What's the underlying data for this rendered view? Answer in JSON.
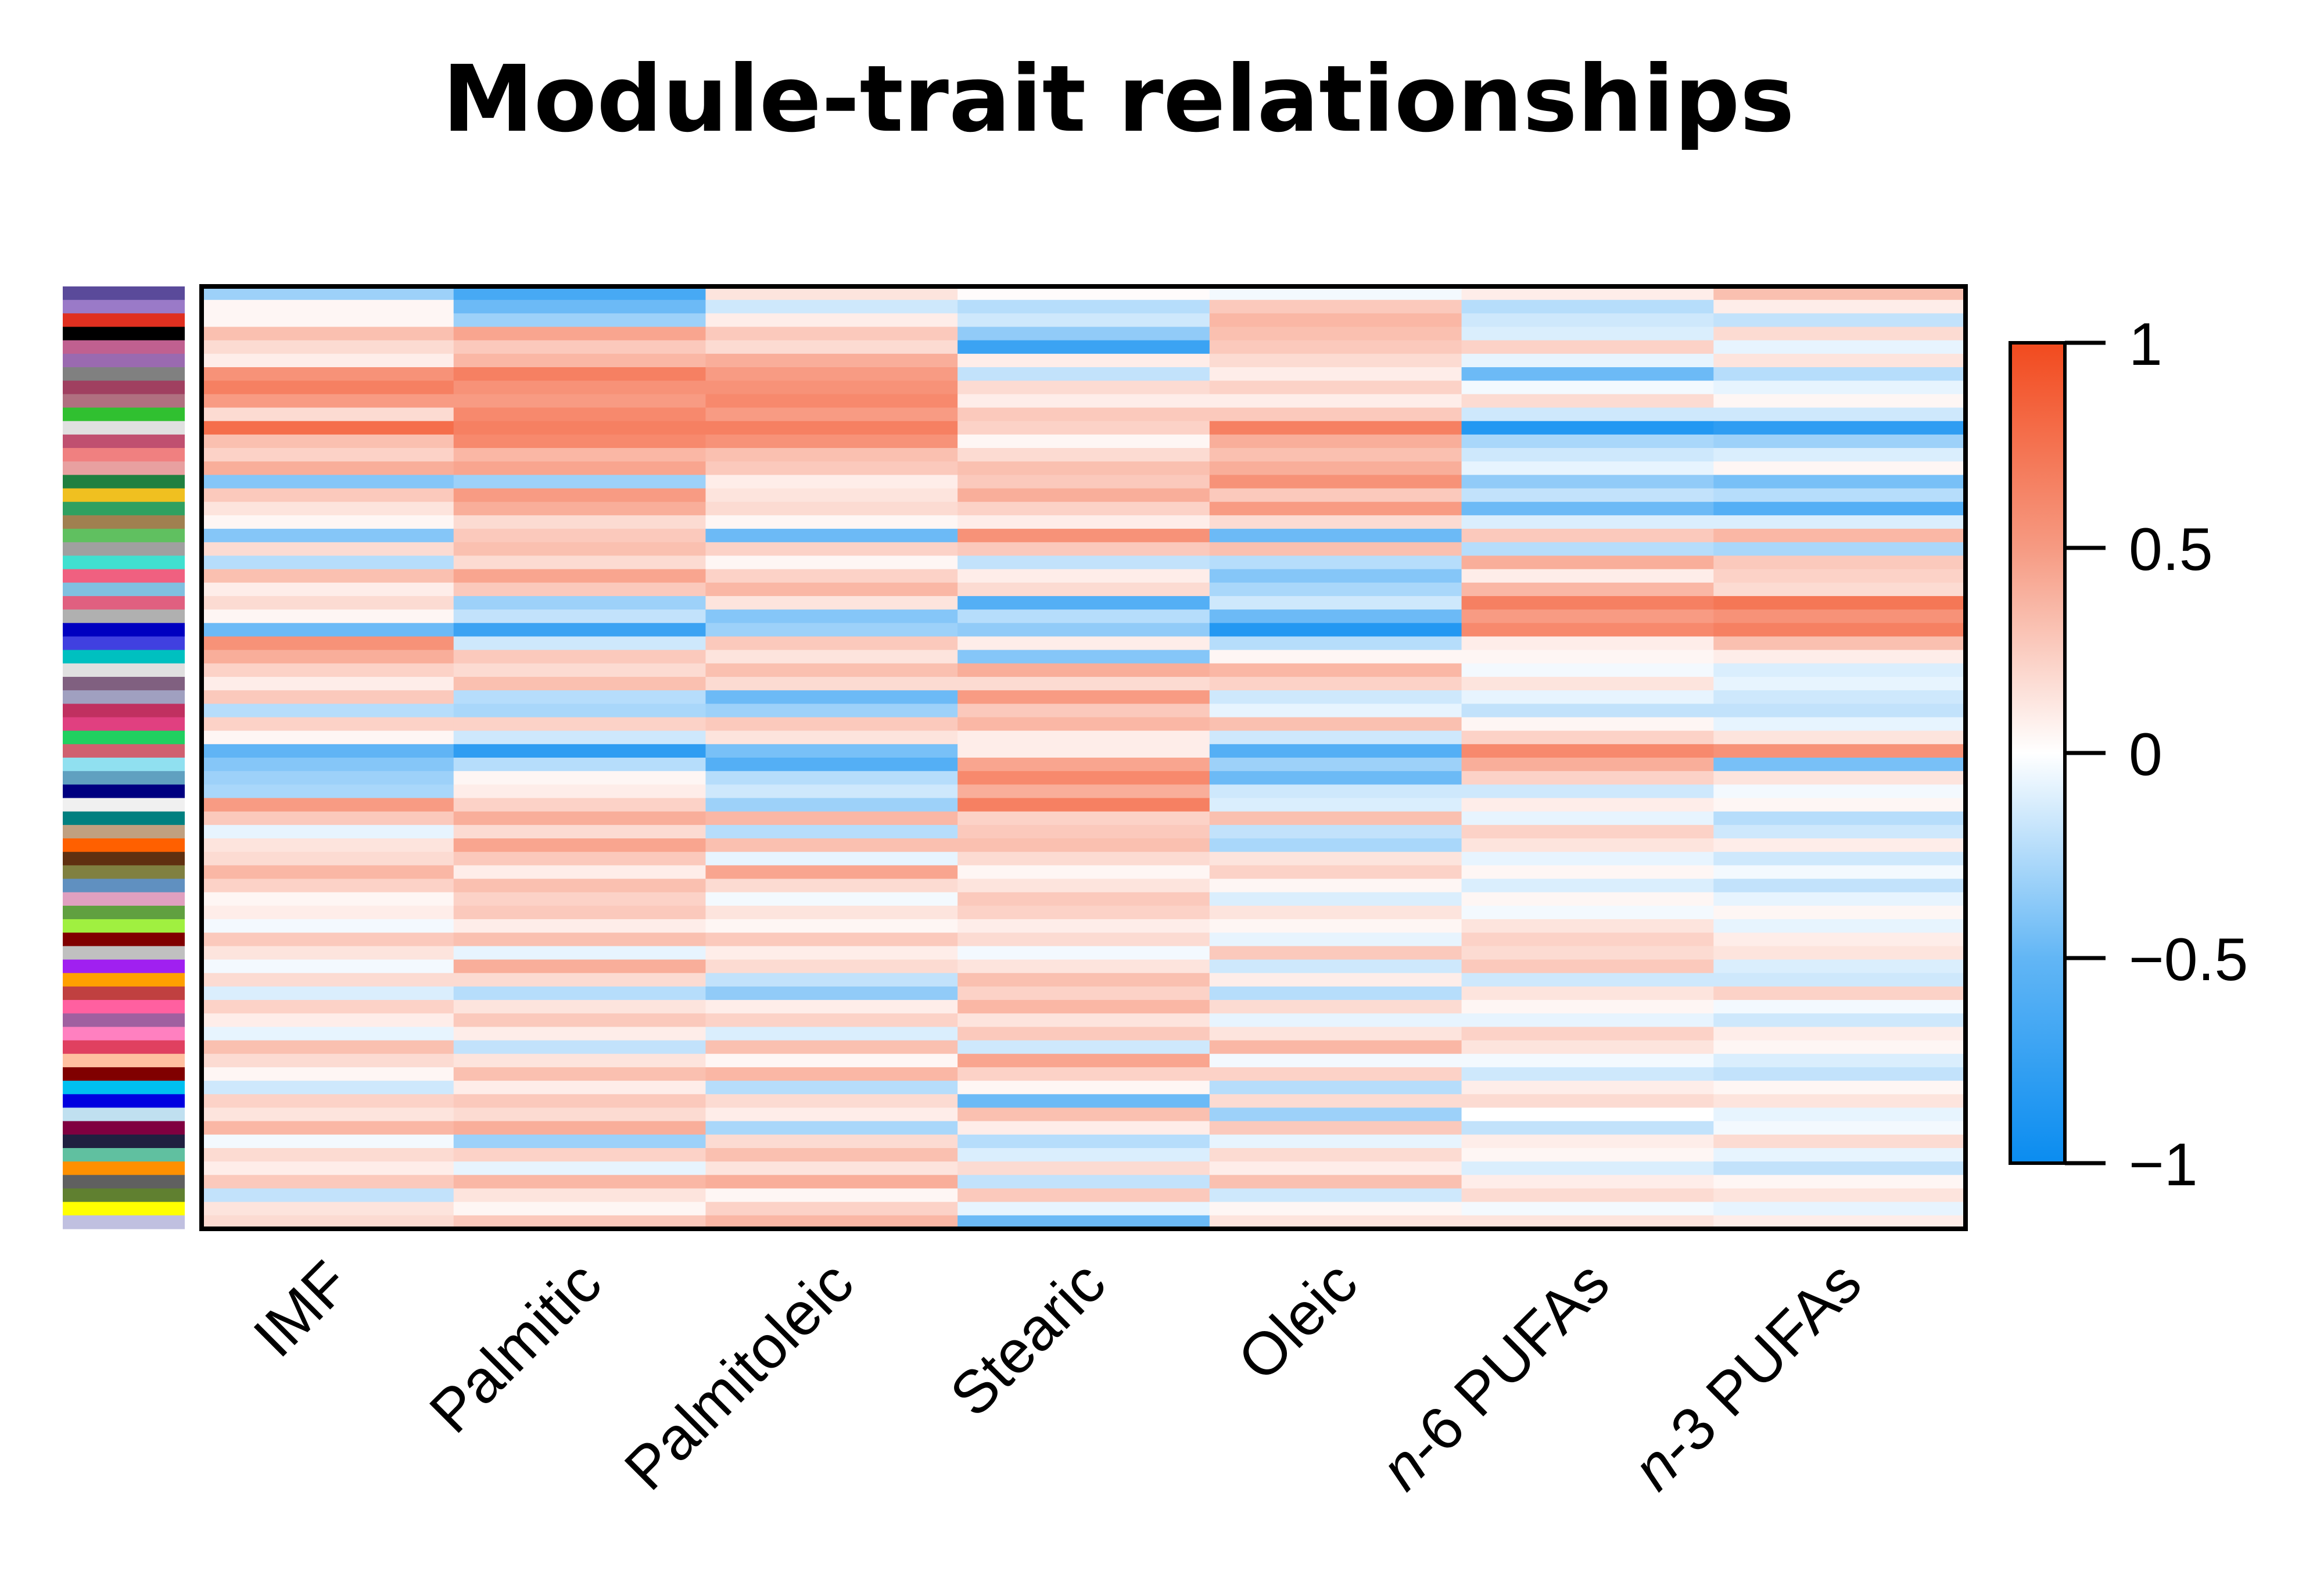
{
  "chart_data": {
    "type": "heatmap",
    "title": "Module-trait relationships",
    "traits": [
      "IMF",
      "Palmitic",
      "Palmitoleic",
      "Stearic",
      "Oleic",
      "n-6 PUFAs",
      "n-3 PUFAs"
    ],
    "trait_labels": [
      {
        "prefix": "",
        "italic": "",
        "rest": "IMF"
      },
      {
        "prefix": "",
        "italic": "",
        "rest": "Palmitic"
      },
      {
        "prefix": "",
        "italic": "",
        "rest": "Palmitoleic"
      },
      {
        "prefix": "",
        "italic": "",
        "rest": "Stearic"
      },
      {
        "prefix": "",
        "italic": "",
        "rest": "Oleic"
      },
      {
        "prefix": "",
        "italic": "n",
        "rest": "-6 PUFAs"
      },
      {
        "prefix": "",
        "italic": "n",
        "rest": "-3 PUFAs"
      }
    ],
    "module_count": 70,
    "value_range": [
      -1,
      1
    ],
    "colorbar": {
      "ticks": [
        1,
        0.5,
        0,
        -0.5,
        -1
      ],
      "tick_labels": [
        "1",
        "0.5",
        "0",
        "−0.5",
        "−1"
      ],
      "colors": {
        "low": "#0a8cf0",
        "mid": "#ffffff",
        "high": "#f24a1e"
      }
    },
    "module_colors": [
      "#5a4a9a",
      "#9a7ac8",
      "#e03020",
      "#000000",
      "#c06090",
      "#9a6ab0",
      "#808080",
      "#a04060",
      "#b07080",
      "#30c030",
      "#e0e0e0",
      "#c05070",
      "#f08080",
      "#e8a0a0",
      "#208040",
      "#f0c020",
      "#30a060",
      "#a08050",
      "#60c060",
      "#a0a0a0",
      "#40e0d0",
      "#f06080",
      "#80c0e0",
      "#e06080",
      "#b0b0b0",
      "#0000c0",
      "#4040e0",
      "#00c0c0",
      "#e0e0e0",
      "#806080",
      "#a0a0c0",
      "#c03060",
      "#e04080",
      "#20d060",
      "#d06070",
      "#90e0f0",
      "#60a0c0",
      "#000080",
      "#f0f0f0",
      "#008080",
      "#c0a080",
      "#ff6000",
      "#603010",
      "#808040",
      "#6090c0",
      "#e0a0c0",
      "#60a040",
      "#a0f040",
      "#800000",
      "#c0c0c0",
      "#a020f0",
      "#ffa000",
      "#c04040",
      "#ff60a0",
      "#a060a0",
      "#ff80c0",
      "#e04060",
      "#ffc0a0",
      "#800000",
      "#00c0f0",
      "#0000e0",
      "#c0e0f0",
      "#800040",
      "#202040",
      "#60c0a0",
      "#ff9000",
      "#606060",
      "#608030",
      "#ffff00",
      "#c0c0e0"
    ],
    "values": [
      [
        -0.4,
        -0.75,
        0.15,
        0.02,
        -0.05,
        0.1,
        0.35
      ],
      [
        0.05,
        -0.6,
        -0.2,
        -0.3,
        0.3,
        -0.3,
        0.1
      ],
      [
        0.05,
        -0.4,
        0.1,
        -0.2,
        0.4,
        -0.2,
        -0.25
      ],
      [
        0.35,
        0.5,
        0.3,
        -0.45,
        0.35,
        -0.15,
        0.2
      ],
      [
        0.2,
        0.3,
        0.2,
        -0.8,
        0.3,
        0.25,
        -0.1
      ],
      [
        0.1,
        0.4,
        0.45,
        0.1,
        0.2,
        -0.1,
        0.15
      ],
      [
        0.6,
        0.7,
        0.55,
        -0.25,
        0.1,
        -0.6,
        -0.3
      ],
      [
        0.7,
        0.6,
        0.6,
        0.2,
        0.25,
        -0.05,
        -0.1
      ],
      [
        0.55,
        0.55,
        0.65,
        0.1,
        0.1,
        0.2,
        0.05
      ],
      [
        0.2,
        0.65,
        0.55,
        0.3,
        0.3,
        -0.2,
        -0.2
      ],
      [
        0.8,
        0.7,
        0.7,
        0.25,
        0.7,
        -0.9,
        -0.85
      ],
      [
        0.35,
        0.65,
        0.6,
        0.05,
        0.45,
        -0.35,
        -0.4
      ],
      [
        0.25,
        0.4,
        0.35,
        0.2,
        0.35,
        -0.2,
        -0.15
      ],
      [
        0.45,
        0.5,
        0.3,
        0.35,
        0.45,
        -0.1,
        0.05
      ],
      [
        -0.5,
        -0.4,
        0.1,
        0.3,
        0.6,
        -0.45,
        -0.55
      ],
      [
        0.3,
        0.55,
        0.15,
        0.45,
        0.3,
        -0.25,
        -0.3
      ],
      [
        0.15,
        0.45,
        0.2,
        0.25,
        0.55,
        -0.6,
        -0.7
      ],
      [
        0.05,
        0.2,
        0.05,
        0.1,
        0.2,
        -0.15,
        -0.15
      ],
      [
        -0.5,
        0.3,
        -0.6,
        0.6,
        -0.6,
        0.3,
        0.4
      ],
      [
        0.2,
        0.35,
        0.25,
        0.3,
        0.35,
        -0.3,
        -0.35
      ],
      [
        -0.3,
        0.2,
        0.05,
        -0.25,
        -0.3,
        0.45,
        0.3
      ],
      [
        0.35,
        0.5,
        0.25,
        0.1,
        -0.5,
        0.1,
        0.25
      ],
      [
        0.1,
        0.3,
        0.4,
        0.2,
        -0.35,
        0.4,
        0.2
      ],
      [
        0.2,
        -0.4,
        0.15,
        -0.7,
        -0.2,
        0.7,
        0.75
      ],
      [
        0.05,
        -0.25,
        -0.5,
        -0.3,
        -0.6,
        0.55,
        0.6
      ],
      [
        -0.6,
        -0.8,
        -0.4,
        -0.45,
        -0.9,
        0.65,
        0.7
      ],
      [
        0.6,
        -0.2,
        0.3,
        0.1,
        -0.3,
        0.1,
        0.35
      ],
      [
        0.45,
        0.3,
        0.15,
        -0.5,
        0.05,
        0.05,
        0.1
      ],
      [
        0.25,
        0.2,
        0.35,
        0.45,
        0.4,
        -0.05,
        -0.15
      ],
      [
        0.1,
        0.35,
        0.2,
        0.2,
        0.25,
        0.15,
        -0.1
      ],
      [
        0.3,
        -0.3,
        -0.6,
        0.55,
        -0.2,
        -0.1,
        -0.2
      ],
      [
        -0.3,
        -0.35,
        -0.4,
        0.3,
        -0.1,
        -0.25,
        -0.25
      ],
      [
        0.25,
        0.25,
        0.3,
        0.4,
        0.35,
        0.05,
        -0.1
      ],
      [
        0.05,
        -0.2,
        0.15,
        0.1,
        -0.2,
        0.25,
        0.15
      ],
      [
        -0.65,
        -0.85,
        -0.55,
        0.1,
        -0.7,
        0.65,
        0.6
      ],
      [
        -0.5,
        -0.3,
        -0.7,
        0.5,
        -0.4,
        0.45,
        -0.55
      ],
      [
        -0.4,
        0.05,
        -0.3,
        0.65,
        -0.6,
        0.25,
        0.15
      ],
      [
        -0.35,
        0.1,
        -0.2,
        0.45,
        -0.2,
        -0.2,
        -0.05
      ],
      [
        0.55,
        0.25,
        -0.4,
        0.7,
        -0.15,
        0.1,
        0.05
      ],
      [
        0.3,
        0.45,
        0.4,
        0.25,
        0.35,
        -0.1,
        -0.3
      ],
      [
        -0.1,
        0.2,
        -0.3,
        0.3,
        -0.25,
        0.25,
        -0.2
      ],
      [
        0.15,
        0.5,
        0.35,
        0.35,
        -0.35,
        0.15,
        0.1
      ],
      [
        0.2,
        0.3,
        -0.1,
        0.2,
        0.15,
        -0.1,
        -0.2
      ],
      [
        0.4,
        0.1,
        0.5,
        0.05,
        0.25,
        0.05,
        -0.05
      ],
      [
        0.25,
        0.35,
        0.2,
        0.15,
        0.05,
        -0.15,
        -0.25
      ],
      [
        0.05,
        0.25,
        -0.05,
        0.3,
        -0.15,
        0.05,
        -0.1
      ],
      [
        0.1,
        0.3,
        0.15,
        0.25,
        0.15,
        -0.05,
        0.05
      ],
      [
        -0.05,
        0.1,
        0.05,
        0.1,
        0.05,
        0.15,
        -0.1
      ],
      [
        0.3,
        0.35,
        0.3,
        0.2,
        -0.1,
        0.25,
        0.1
      ],
      [
        0.15,
        -0.1,
        0.1,
        -0.05,
        0.3,
        0.2,
        0.15
      ],
      [
        -0.05,
        0.45,
        0.2,
        0.15,
        -0.2,
        0.3,
        -0.15
      ],
      [
        0.2,
        0.2,
        -0.25,
        0.35,
        0.1,
        -0.2,
        -0.2
      ],
      [
        -0.15,
        -0.3,
        -0.45,
        0.25,
        -0.3,
        0.15,
        0.25
      ],
      [
        0.25,
        0.15,
        0.1,
        0.4,
        0.2,
        0.05,
        -0.05
      ],
      [
        0.1,
        0.3,
        0.25,
        0.15,
        -0.1,
        -0.1,
        -0.2
      ],
      [
        -0.1,
        0.1,
        -0.15,
        0.3,
        0.15,
        0.25,
        0.1
      ],
      [
        0.35,
        -0.25,
        0.35,
        -0.2,
        0.4,
        0.15,
        0.05
      ],
      [
        0.2,
        0.15,
        0.05,
        0.5,
        -0.05,
        -0.05,
        -0.15
      ],
      [
        0.05,
        0.35,
        0.4,
        0.25,
        0.25,
        -0.2,
        -0.25
      ],
      [
        -0.2,
        0.1,
        -0.3,
        0.05,
        -0.3,
        0.1,
        0.05
      ],
      [
        0.25,
        0.3,
        0.2,
        -0.6,
        0.2,
        0.2,
        0.15
      ],
      [
        0.15,
        0.2,
        0.1,
        0.35,
        -0.4,
        0.0,
        -0.1
      ],
      [
        0.4,
        0.45,
        -0.35,
        0.1,
        0.3,
        -0.25,
        -0.05
      ],
      [
        -0.05,
        -0.4,
        0.2,
        -0.3,
        -0.1,
        0.1,
        0.2
      ],
      [
        0.2,
        0.25,
        0.35,
        -0.15,
        0.2,
        0.05,
        -0.1
      ],
      [
        0.1,
        -0.1,
        0.15,
        0.2,
        0.1,
        -0.15,
        -0.25
      ],
      [
        0.3,
        0.4,
        0.45,
        -0.25,
        0.35,
        0.1,
        0.05
      ],
      [
        -0.25,
        0.15,
        0.05,
        0.3,
        -0.2,
        0.2,
        0.15
      ],
      [
        0.15,
        0.05,
        0.25,
        -0.1,
        0.05,
        -0.05,
        -0.1
      ],
      [
        0.2,
        0.3,
        0.4,
        -0.6,
        0.15,
        0.15,
        0.1
      ]
    ]
  }
}
